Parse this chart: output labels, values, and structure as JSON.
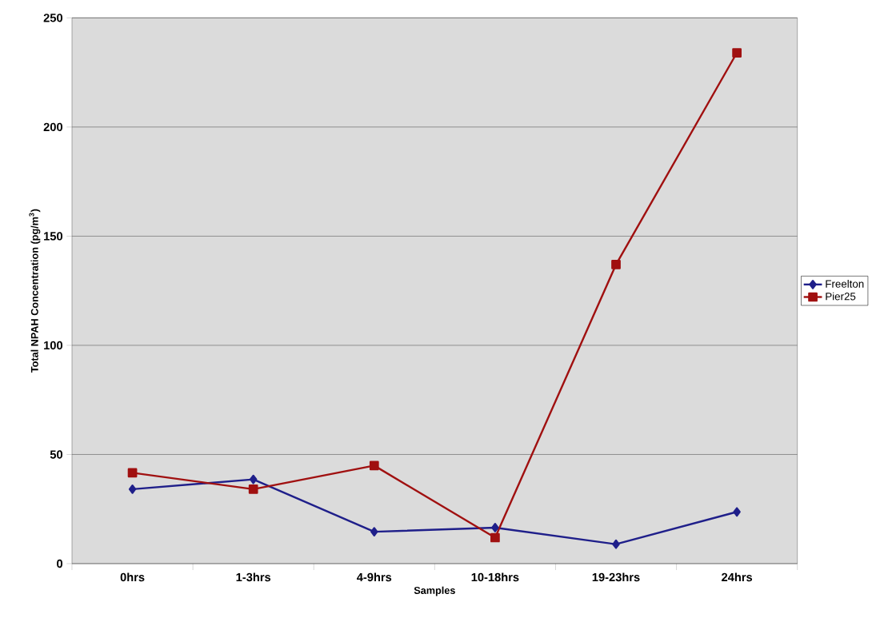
{
  "chart_data": {
    "type": "line",
    "xlabel": "Samples",
    "ylabel": "Total NPAH Concentration (pg/m$^{3}$)",
    "categories": [
      "0hrs",
      "1-3hrs",
      "4-9hrs",
      "10-18hrs",
      "19-23hrs",
      "24hrs"
    ],
    "series": [
      {
        "name": "Freelton",
        "color": "#1f1f8a",
        "marker": "diamond",
        "values": [
          34.1,
          38.6,
          14.6,
          16.5,
          8.9,
          23.7
        ]
      },
      {
        "name": "Pier25",
        "color": "#a01010",
        "marker": "square",
        "values": [
          41.6,
          34.1,
          44.9,
          11.9,
          137,
          234
        ]
      }
    ],
    "ylim": [
      0,
      250
    ],
    "yticks": [
      0,
      50,
      100,
      150,
      200,
      250
    ],
    "grid": "y",
    "legend": "right",
    "line_style": "solid"
  }
}
